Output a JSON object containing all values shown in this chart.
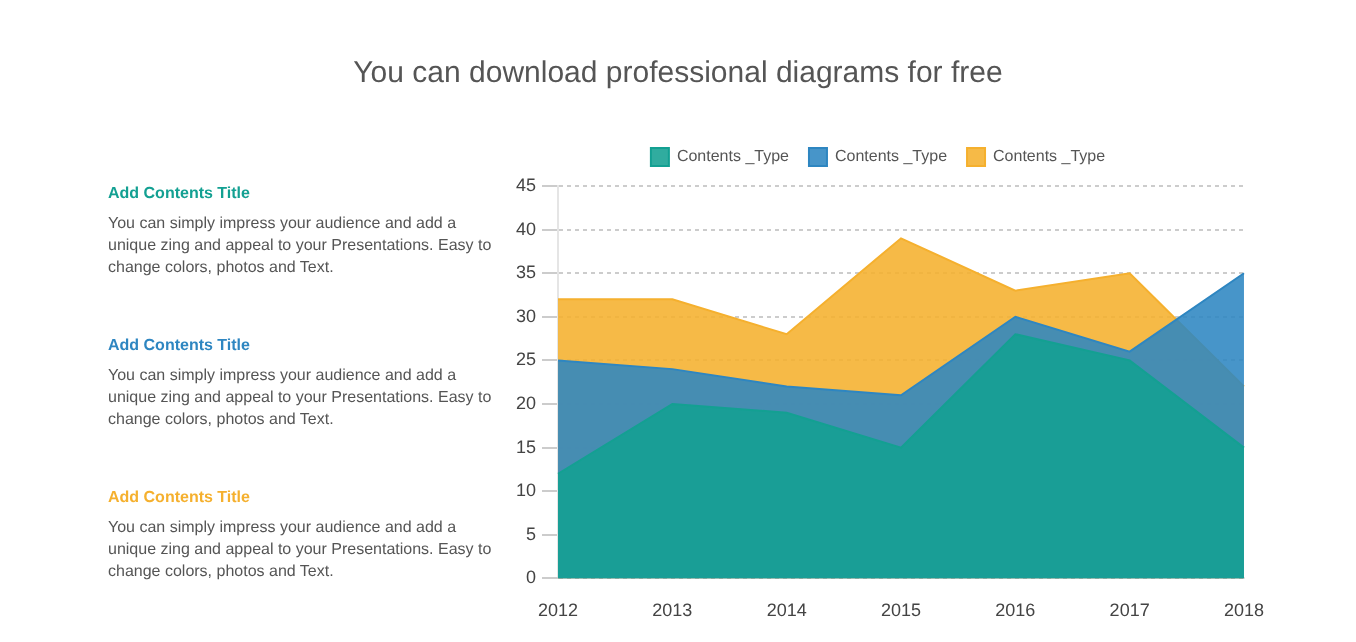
{
  "chart_data": {
    "type": "area",
    "subtitle": "You can download professional diagrams for free",
    "categories": [
      "2012",
      "2013",
      "2014",
      "2015",
      "2016",
      "2017",
      "2018"
    ],
    "series": [
      {
        "name": "Contents _Type",
        "color": "#13a092",
        "values": [
          12,
          20,
          19,
          15,
          28,
          25,
          15
        ]
      },
      {
        "name": "Contents _Type",
        "color": "#2e86c1",
        "values": [
          25,
          24,
          22,
          21,
          30,
          26,
          35
        ]
      },
      {
        "name": "Contents _Type",
        "color": "#f5b02e",
        "values": [
          32,
          32,
          28,
          39,
          33,
          35,
          22
        ]
      }
    ],
    "ylim": [
      0,
      45
    ],
    "yticks": [
      0,
      5,
      10,
      15,
      20,
      25,
      30,
      35,
      40,
      45
    ],
    "grid": "y",
    "legend": "top",
    "annotations": [
      "Add Contents Title",
      "You can simply impress your audience and add a unique zing and appeal to your Presentations. Easy to change colors, photos and Text.",
      "Add Contents Title",
      "You can simply impress your audience and add a unique zing and appeal to your Presentations. Easy to change colors, photos and Text.",
      "Add Contents Title",
      "You can simply impress your audience and add a unique zing and appeal to your Presentations. Easy to change colors, photos and Text."
    ]
  }
}
